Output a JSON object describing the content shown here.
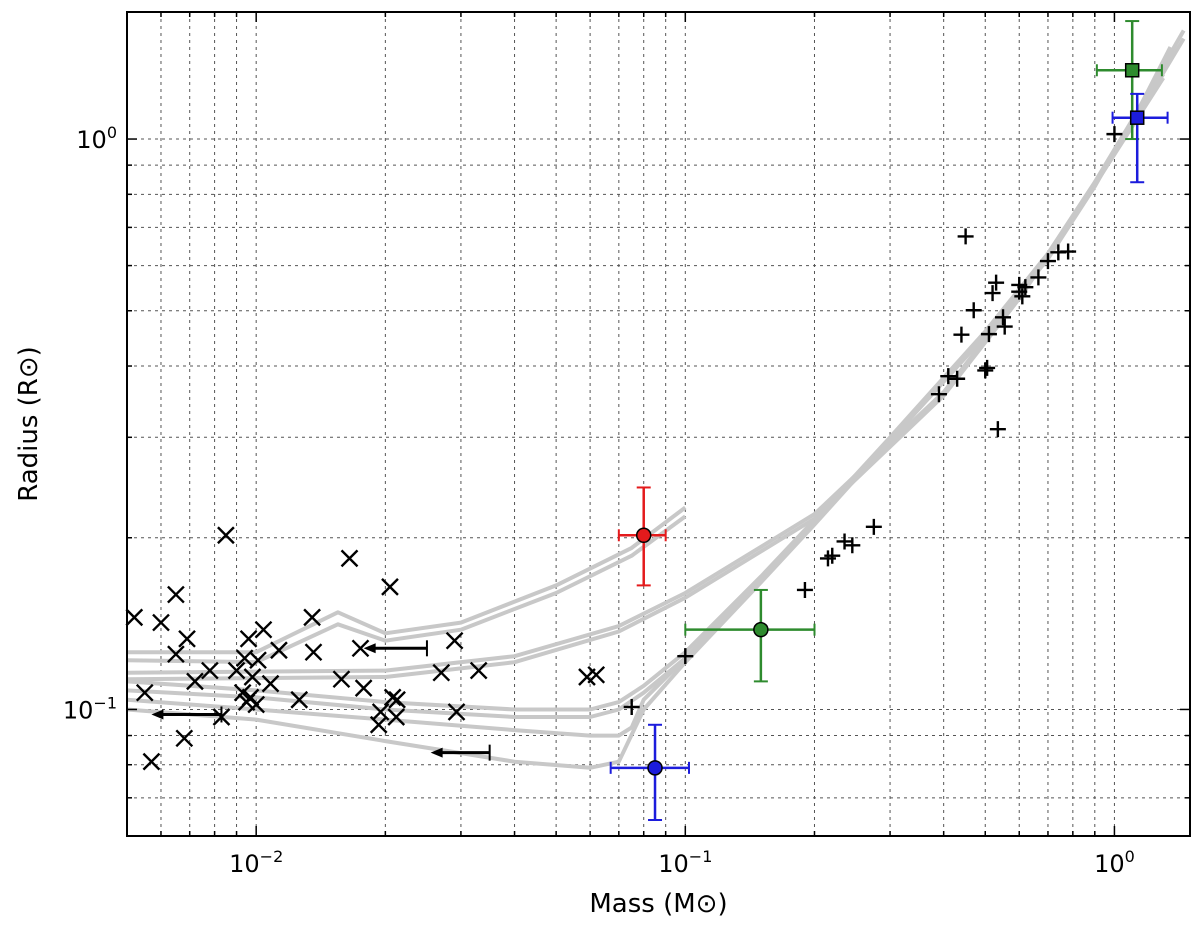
{
  "chart_data": {
    "type": "scatter",
    "title": "",
    "xlabel": "Mass (M⊙)",
    "ylabel": "Radius (R⊙)",
    "xscale": "log",
    "yscale": "log",
    "xlim": [
      0.005,
      1.5
    ],
    "ylim": [
      0.06,
      1.67
    ],
    "grid": true,
    "x_ticks": [
      {
        "value": 0.01,
        "base": "10",
        "exp": "−2"
      },
      {
        "value": 0.1,
        "base": "10",
        "exp": "−1"
      },
      {
        "value": 1.0,
        "base": "10",
        "exp": "0"
      }
    ],
    "y_ticks": [
      {
        "value": 0.1,
        "base": "10",
        "exp": "−1"
      },
      {
        "value": 1.0,
        "base": "10",
        "exp": "0"
      }
    ],
    "colors": {
      "model": "#c8c8c8",
      "points": "#000000",
      "red": "#e41a1c",
      "green": "#2e8b2e",
      "blue": "#1c1cdc"
    },
    "models": [
      {
        "name": "model-upper-low-mass",
        "points": [
          [
            0.005,
            0.126
          ],
          [
            0.01,
            0.126
          ],
          [
            0.0155,
            0.148
          ],
          [
            0.02,
            0.136
          ],
          [
            0.03,
            0.142
          ],
          [
            0.05,
            0.165
          ],
          [
            0.075,
            0.192
          ],
          [
            0.1,
            0.226
          ]
        ]
      },
      {
        "name": "model-upper-low-mass-b",
        "points": [
          [
            0.005,
            0.122
          ],
          [
            0.01,
            0.121
          ],
          [
            0.0155,
            0.141
          ],
          [
            0.02,
            0.132
          ],
          [
            0.03,
            0.138
          ],
          [
            0.05,
            0.16
          ],
          [
            0.075,
            0.186
          ],
          [
            0.1,
            0.218
          ]
        ]
      },
      {
        "name": "model-upper-mid",
        "points": [
          [
            0.005,
            0.116
          ],
          [
            0.02,
            0.117
          ],
          [
            0.04,
            0.124
          ],
          [
            0.07,
            0.14
          ],
          [
            0.1,
            0.16
          ],
          [
            0.2,
            0.22
          ],
          [
            0.4,
            0.36
          ],
          [
            0.6,
            0.53
          ],
          [
            0.8,
            0.73
          ],
          [
            1.0,
            0.95
          ],
          [
            1.3,
            1.3
          ]
        ]
      },
      {
        "name": "model-upper-mid-b",
        "points": [
          [
            0.005,
            0.113
          ],
          [
            0.02,
            0.114
          ],
          [
            0.04,
            0.121
          ],
          [
            0.07,
            0.137
          ],
          [
            0.1,
            0.157
          ],
          [
            0.2,
            0.216
          ],
          [
            0.4,
            0.355
          ],
          [
            0.6,
            0.525
          ],
          [
            0.8,
            0.725
          ],
          [
            1.0,
            0.94
          ],
          [
            1.3,
            1.28
          ]
        ]
      },
      {
        "name": "model-bd-mid",
        "points": [
          [
            0.005,
            0.112
          ],
          [
            0.01,
            0.108
          ],
          [
            0.02,
            0.103
          ],
          [
            0.04,
            0.1
          ],
          [
            0.06,
            0.1
          ],
          [
            0.07,
            0.103
          ],
          [
            0.08,
            0.11
          ],
          [
            0.1,
            0.126
          ],
          [
            0.15,
            0.171
          ],
          [
            0.2,
            0.215
          ],
          [
            0.3,
            0.3
          ],
          [
            0.5,
            0.46
          ],
          [
            0.7,
            0.63
          ],
          [
            0.9,
            0.84
          ],
          [
            1.1,
            1.08
          ],
          [
            1.45,
            1.55
          ]
        ]
      },
      {
        "name": "model-bd-mid-b",
        "points": [
          [
            0.005,
            0.108
          ],
          [
            0.01,
            0.105
          ],
          [
            0.02,
            0.1
          ],
          [
            0.04,
            0.097
          ],
          [
            0.06,
            0.097
          ],
          [
            0.07,
            0.1
          ],
          [
            0.08,
            0.107
          ],
          [
            0.1,
            0.123
          ],
          [
            0.15,
            0.168
          ],
          [
            0.2,
            0.212
          ],
          [
            0.3,
            0.296
          ],
          [
            0.5,
            0.455
          ],
          [
            0.7,
            0.62
          ],
          [
            0.9,
            0.83
          ],
          [
            1.1,
            1.06
          ],
          [
            1.45,
            1.5
          ]
        ]
      },
      {
        "name": "model-bd-low",
        "points": [
          [
            0.005,
            0.104
          ],
          [
            0.01,
            0.1
          ],
          [
            0.02,
            0.096
          ],
          [
            0.04,
            0.092
          ],
          [
            0.06,
            0.09
          ],
          [
            0.07,
            0.09
          ],
          [
            0.075,
            0.093
          ],
          [
            0.08,
            0.104
          ],
          [
            0.1,
            0.123
          ],
          [
            0.15,
            0.169
          ],
          [
            0.2,
            0.213
          ],
          [
            0.3,
            0.298
          ],
          [
            0.5,
            0.455
          ],
          [
            0.7,
            0.62
          ],
          [
            0.9,
            0.83
          ],
          [
            1.05,
            1.0
          ],
          [
            1.35,
            1.45
          ]
        ]
      },
      {
        "name": "model-bd-lowest",
        "points": [
          [
            0.005,
            0.1
          ],
          [
            0.01,
            0.096
          ],
          [
            0.02,
            0.088
          ],
          [
            0.04,
            0.081
          ],
          [
            0.06,
            0.079
          ],
          [
            0.07,
            0.081
          ],
          [
            0.08,
            0.1
          ],
          [
            0.1,
            0.121
          ],
          [
            0.15,
            0.167
          ],
          [
            0.2,
            0.211
          ],
          [
            0.3,
            0.296
          ],
          [
            0.5,
            0.452
          ],
          [
            0.7,
            0.617
          ],
          [
            0.9,
            0.826
          ],
          [
            1.0,
            0.95
          ]
        ]
      }
    ],
    "x_points": [
      [
        0.0052,
        0.145
      ],
      [
        0.0055,
        0.107
      ],
      [
        0.0057,
        0.081
      ],
      [
        0.006,
        0.142
      ],
      [
        0.0065,
        0.159
      ],
      [
        0.0065,
        0.125
      ],
      [
        0.0068,
        0.089
      ],
      [
        0.0069,
        0.133
      ],
      [
        0.0072,
        0.112
      ],
      [
        0.0078,
        0.117
      ],
      [
        0.0083,
        0.097
      ],
      [
        0.0085,
        0.202
      ],
      [
        0.009,
        0.117
      ],
      [
        0.0093,
        0.107
      ],
      [
        0.0094,
        0.123
      ],
      [
        0.0095,
        0.103
      ],
      [
        0.0096,
        0.133
      ],
      [
        0.0097,
        0.105
      ],
      [
        0.0098,
        0.114
      ],
      [
        0.01,
        0.102
      ],
      [
        0.0101,
        0.122
      ],
      [
        0.0104,
        0.138
      ],
      [
        0.0108,
        0.111
      ],
      [
        0.0113,
        0.127
      ],
      [
        0.0126,
        0.104
      ],
      [
        0.0135,
        0.145
      ],
      [
        0.0136,
        0.126
      ],
      [
        0.0158,
        0.113
      ],
      [
        0.0165,
        0.184
      ],
      [
        0.0175,
        0.128
      ],
      [
        0.0178,
        0.109
      ],
      [
        0.0193,
        0.094
      ],
      [
        0.0195,
        0.099
      ],
      [
        0.0205,
        0.164
      ],
      [
        0.0208,
        0.105
      ],
      [
        0.0212,
        0.097
      ],
      [
        0.0213,
        0.104
      ],
      [
        0.027,
        0.116
      ],
      [
        0.029,
        0.132
      ],
      [
        0.0293,
        0.099
      ],
      [
        0.033,
        0.117
      ],
      [
        0.059,
        0.114
      ],
      [
        0.062,
        0.115
      ]
    ],
    "plus_points": [
      [
        0.075,
        0.101
      ],
      [
        0.1,
        0.124
      ],
      [
        0.19,
        0.162
      ],
      [
        0.215,
        0.184
      ],
      [
        0.22,
        0.186
      ],
      [
        0.235,
        0.197
      ],
      [
        0.245,
        0.194
      ],
      [
        0.275,
        0.209
      ],
      [
        0.39,
        0.357
      ],
      [
        0.41,
        0.384
      ],
      [
        0.43,
        0.38
      ],
      [
        0.44,
        0.454
      ],
      [
        0.45,
        0.675
      ],
      [
        0.47,
        0.501
      ],
      [
        0.5,
        0.393
      ],
      [
        0.505,
        0.397
      ],
      [
        0.51,
        0.455
      ],
      [
        0.52,
        0.537
      ],
      [
        0.53,
        0.56
      ],
      [
        0.535,
        0.31
      ],
      [
        0.55,
        0.487
      ],
      [
        0.555,
        0.469
      ],
      [
        0.6,
        0.54
      ],
      [
        0.6,
        0.555
      ],
      [
        0.61,
        0.53
      ],
      [
        0.62,
        0.55
      ],
      [
        0.665,
        0.572
      ],
      [
        0.7,
        0.611
      ],
      [
        0.74,
        0.633
      ],
      [
        0.78,
        0.635
      ],
      [
        1.0,
        1.02
      ]
    ],
    "upper_limits": [
      {
        "x": 0.025,
        "y": 0.128,
        "arrow_to": 0.0178
      },
      {
        "x": 0.0083,
        "y": 0.098,
        "arrow_to": 0.0057
      },
      {
        "x": 0.035,
        "y": 0.084,
        "arrow_to": 0.0255
      }
    ],
    "highlighted": [
      {
        "name": "red-circle",
        "marker": "circle",
        "color": "red",
        "x": 0.08,
        "y": 0.202,
        "xerr": [
          0.07,
          0.09
        ],
        "yerr": [
          0.165,
          0.245
        ]
      },
      {
        "name": "green-circle",
        "marker": "circle",
        "color": "green",
        "x": 0.15,
        "y": 0.138,
        "xerr": [
          0.1,
          0.2
        ],
        "yerr": [
          0.112,
          0.162
        ]
      },
      {
        "name": "blue-circle",
        "marker": "circle",
        "color": "blue",
        "x": 0.085,
        "y": 0.079,
        "xerr": [
          0.067,
          0.102
        ],
        "yerr": [
          0.064,
          0.094
        ]
      },
      {
        "name": "green-square",
        "marker": "square",
        "color": "green",
        "x": 1.1,
        "y": 1.32,
        "xerr": [
          0.91,
          1.29
        ],
        "yerr": [
          1.0,
          1.61
        ]
      },
      {
        "name": "blue-square",
        "marker": "square",
        "color": "blue",
        "x": 1.13,
        "y": 1.09,
        "xerr": [
          0.99,
          1.33
        ],
        "yerr": [
          0.84,
          1.2
        ]
      }
    ]
  }
}
